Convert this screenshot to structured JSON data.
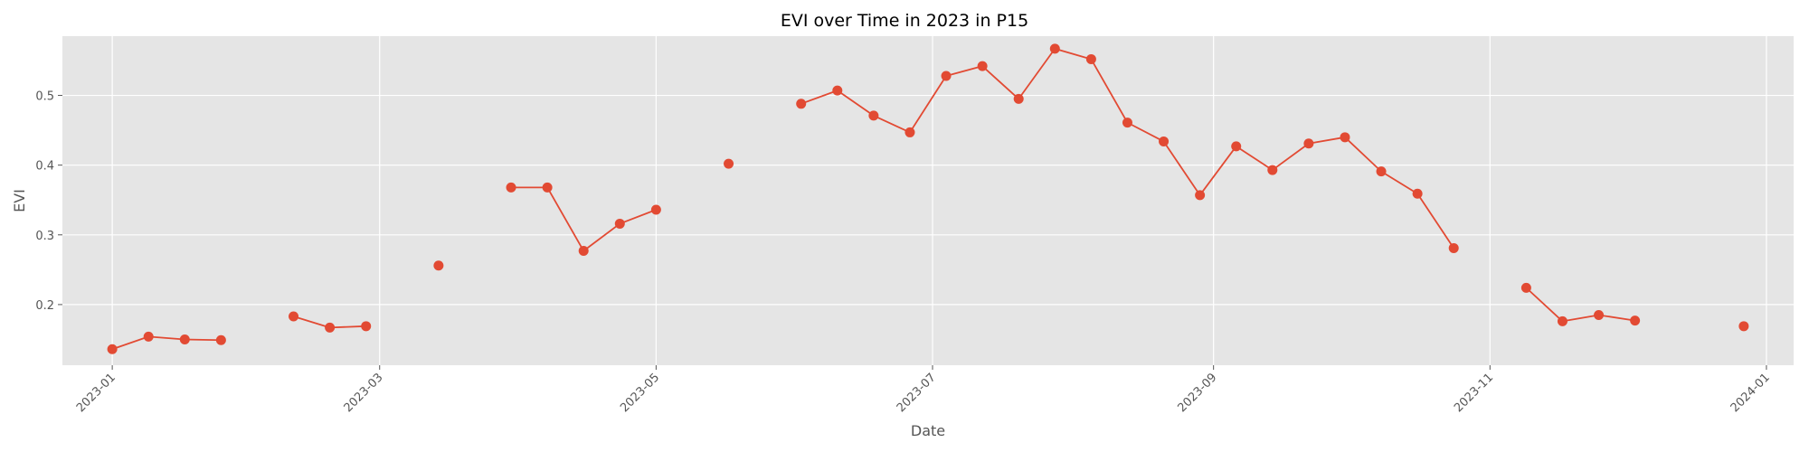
{
  "chart_data": {
    "type": "line",
    "title": "EVI over Time in 2023 in P15",
    "xlabel": "Date",
    "ylabel": "EVI",
    "x_axis_type": "date",
    "xlim": [
      "2022-12-21",
      "2024-01-07"
    ],
    "ylim": [
      0.113,
      0.585
    ],
    "grid": true,
    "x_ticks": [
      "2023-01",
      "2023-03",
      "2023-05",
      "2023-07",
      "2023-09",
      "2023-11",
      "2024-01"
    ],
    "x_tick_dates": [
      "2023-01-01",
      "2023-03-01",
      "2023-05-01",
      "2023-07-01",
      "2023-09-01",
      "2023-11-01",
      "2024-01-01"
    ],
    "y_ticks": [
      "0.2",
      "0.3",
      "0.4",
      "0.5"
    ],
    "y_tick_values": [
      0.2,
      0.3,
      0.4,
      0.5
    ],
    "series": [
      {
        "color": "#e24a33",
        "marker": "circle",
        "points": [
          {
            "x": "2023-01-01",
            "y": 0.136
          },
          {
            "x": "2023-01-09",
            "y": 0.154
          },
          {
            "x": "2023-01-17",
            "y": 0.15
          },
          {
            "x": "2023-01-25",
            "y": 0.149
          },
          {
            "x": "2023-02-02",
            "y": null
          },
          {
            "x": "2023-02-10",
            "y": 0.183
          },
          {
            "x": "2023-02-18",
            "y": 0.167
          },
          {
            "x": "2023-02-26",
            "y": 0.169
          },
          {
            "x": "2023-03-06",
            "y": null
          },
          {
            "x": "2023-03-14",
            "y": 0.256
          },
          {
            "x": "2023-03-22",
            "y": null
          },
          {
            "x": "2023-03-30",
            "y": 0.368
          },
          {
            "x": "2023-04-07",
            "y": 0.368
          },
          {
            "x": "2023-04-15",
            "y": 0.277
          },
          {
            "x": "2023-04-23",
            "y": 0.316
          },
          {
            "x": "2023-05-01",
            "y": 0.336
          },
          {
            "x": "2023-05-09",
            "y": null
          },
          {
            "x": "2023-05-17",
            "y": 0.402
          },
          {
            "x": "2023-05-25",
            "y": null
          },
          {
            "x": "2023-06-02",
            "y": 0.488
          },
          {
            "x": "2023-06-10",
            "y": 0.507
          },
          {
            "x": "2023-06-18",
            "y": 0.471
          },
          {
            "x": "2023-06-26",
            "y": 0.447
          },
          {
            "x": "2023-07-04",
            "y": 0.528
          },
          {
            "x": "2023-07-12",
            "y": 0.542
          },
          {
            "x": "2023-07-20",
            "y": 0.495
          },
          {
            "x": "2023-07-28",
            "y": 0.567
          },
          {
            "x": "2023-08-05",
            "y": 0.552
          },
          {
            "x": "2023-08-13",
            "y": 0.461
          },
          {
            "x": "2023-08-21",
            "y": 0.434
          },
          {
            "x": "2023-08-29",
            "y": 0.357
          },
          {
            "x": "2023-09-06",
            "y": 0.427
          },
          {
            "x": "2023-09-14",
            "y": 0.393
          },
          {
            "x": "2023-09-22",
            "y": 0.431
          },
          {
            "x": "2023-09-30",
            "y": 0.44
          },
          {
            "x": "2023-10-08",
            "y": 0.391
          },
          {
            "x": "2023-10-16",
            "y": 0.359
          },
          {
            "x": "2023-10-24",
            "y": 0.281
          },
          {
            "x": "2023-11-01",
            "y": null
          },
          {
            "x": "2023-11-09",
            "y": 0.224
          },
          {
            "x": "2023-11-17",
            "y": 0.176
          },
          {
            "x": "2023-11-25",
            "y": 0.185
          },
          {
            "x": "2023-12-03",
            "y": 0.177
          },
          {
            "x": "2023-12-11",
            "y": null
          },
          {
            "x": "2023-12-19",
            "y": null
          },
          {
            "x": "2023-12-27",
            "y": 0.169
          }
        ]
      }
    ]
  }
}
